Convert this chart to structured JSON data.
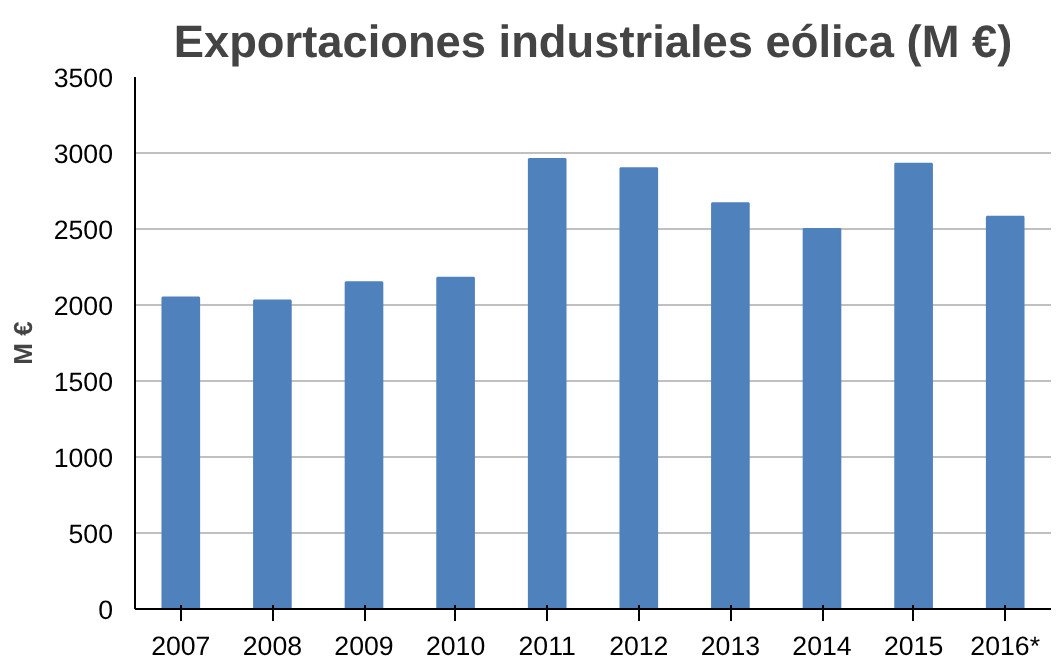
{
  "chart_data": {
    "type": "bar",
    "title": "Exportaciones industriales eólica (M €)",
    "ylabel": "M €",
    "categories": [
      "2007",
      "2008",
      "2009",
      "2010",
      "2011",
      "2012",
      "2013",
      "2014",
      "2015",
      "2016*"
    ],
    "values": [
      2050,
      2030,
      2150,
      2180,
      2960,
      2900,
      2670,
      2500,
      2930,
      2580
    ],
    "color": "#4f81bd",
    "ylim": [
      0,
      3500
    ],
    "yticks": [
      0,
      500,
      1000,
      1500,
      2000,
      2500,
      3000,
      3500
    ],
    "grid": "y"
  }
}
